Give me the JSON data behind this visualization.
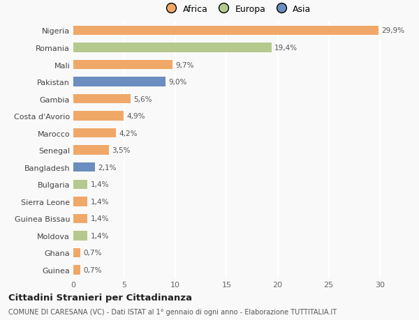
{
  "categories": [
    "Nigeria",
    "Romania",
    "Mali",
    "Pakistan",
    "Gambia",
    "Costa d'Avorio",
    "Marocco",
    "Senegal",
    "Bangladesh",
    "Bulgaria",
    "Sierra Leone",
    "Guinea Bissau",
    "Moldova",
    "Ghana",
    "Guinea"
  ],
  "values": [
    29.9,
    19.4,
    9.7,
    9.0,
    5.6,
    4.9,
    4.2,
    3.5,
    2.1,
    1.4,
    1.4,
    1.4,
    1.4,
    0.7,
    0.7
  ],
  "labels": [
    "29,9%",
    "19,4%",
    "9,7%",
    "9,0%",
    "5,6%",
    "4,9%",
    "4,2%",
    "3,5%",
    "2,1%",
    "1,4%",
    "1,4%",
    "1,4%",
    "1,4%",
    "0,7%",
    "0,7%"
  ],
  "continent": [
    "Africa",
    "Europa",
    "Africa",
    "Asia",
    "Africa",
    "Africa",
    "Africa",
    "Africa",
    "Asia",
    "Europa",
    "Africa",
    "Africa",
    "Europa",
    "Africa",
    "Africa"
  ],
  "colors": {
    "Africa": "#F0A868",
    "Europa": "#B5C98E",
    "Asia": "#6B8DBF"
  },
  "legend_labels": [
    "Africa",
    "Europa",
    "Asia"
  ],
  "legend_colors": [
    "#F0A868",
    "#B5C98E",
    "#6B8DBF"
  ],
  "xlim": [
    0,
    32
  ],
  "xticks": [
    0,
    5,
    10,
    15,
    20,
    25,
    30
  ],
  "title": "Cittadini Stranieri per Cittadinanza",
  "subtitle": "COMUNE DI CARESANA (VC) - Dati ISTAT al 1° gennaio di ogni anno - Elaborazione TUTTITALIA.IT",
  "bg_color": "#f9f9f9",
  "bar_height": 0.55
}
